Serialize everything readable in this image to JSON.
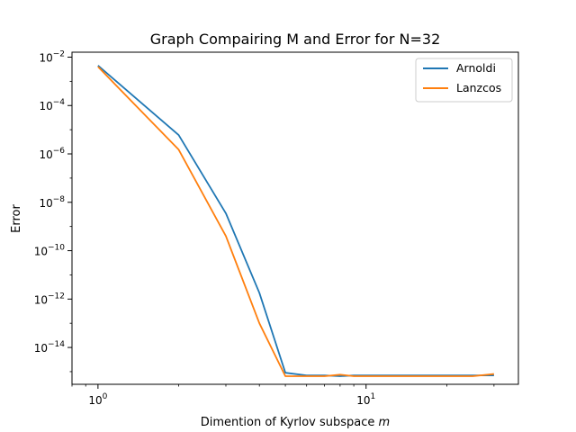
{
  "chart_data": {
    "type": "line",
    "title": "Graph Compairing M and Error for N=32",
    "xlabel": "Dimention of Kyrlov subspace",
    "xlabel_var": "m",
    "ylabel": "Error",
    "xscale": "log",
    "yscale": "log",
    "xlim": [
      0.8,
      37
    ],
    "ylim": [
      3e-16,
      0.016
    ],
    "grid": false,
    "legend_position": "top-right",
    "x_ticks": [
      {
        "value": 1,
        "base": "10",
        "exp": "0"
      },
      {
        "value": 10,
        "base": "10",
        "exp": "1"
      }
    ],
    "y_ticks": [
      {
        "value": 0.01,
        "base": "10",
        "exp": "−2"
      },
      {
        "value": 0.0001,
        "base": "10",
        "exp": "−4"
      },
      {
        "value": 1e-06,
        "base": "10",
        "exp": "−6"
      },
      {
        "value": 1e-08,
        "base": "10",
        "exp": "−8"
      },
      {
        "value": 1e-10,
        "base": "10",
        "exp": "−10"
      },
      {
        "value": 1e-12,
        "base": "10",
        "exp": "−12"
      },
      {
        "value": 1e-14,
        "base": "10",
        "exp": "−14"
      }
    ],
    "x": [
      1,
      2,
      3,
      4,
      5,
      6,
      7,
      8,
      9,
      10,
      15,
      20,
      25,
      30
    ],
    "series": [
      {
        "name": "Arnoldi",
        "color": "#1f77b4",
        "values": [
          0.0045,
          6e-06,
          3.5e-09,
          1.8e-12,
          9e-16,
          7e-16,
          7e-16,
          6.5e-16,
          7e-16,
          7e-16,
          7e-16,
          7e-16,
          7e-16,
          7e-16
        ]
      },
      {
        "name": "Lanzcos",
        "color": "#ff7f0e",
        "values": [
          0.004,
          1.5e-06,
          4e-10,
          1e-13,
          6.5e-16,
          6.5e-16,
          6.5e-16,
          7.5e-16,
          6.5e-16,
          6.5e-16,
          6.5e-16,
          6.5e-16,
          6.5e-16,
          8e-16
        ]
      }
    ]
  }
}
